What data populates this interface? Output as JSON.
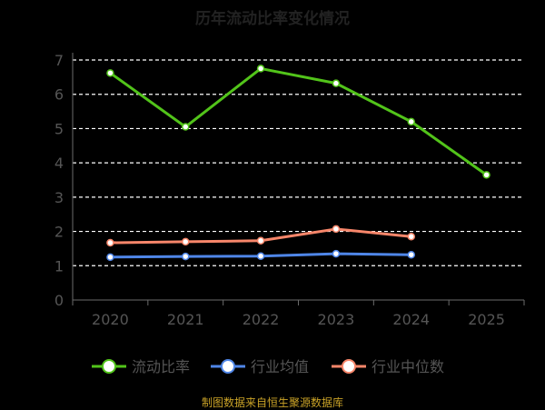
{
  "chart_data": {
    "type": "line",
    "title": "历年流动比率变化情况",
    "categories": [
      "2020",
      "2021",
      "2022",
      "2023",
      "2024",
      "2025"
    ],
    "ylim": [
      0,
      7
    ],
    "yticks": [
      "0",
      "1",
      "2",
      "3",
      "4",
      "5",
      "6",
      "7"
    ],
    "grid": true,
    "legend_position": "bottom",
    "series": [
      {
        "name": "流动比率",
        "color": "#52c41a",
        "values": [
          6.62,
          5.05,
          6.75,
          6.32,
          5.2,
          3.65
        ]
      },
      {
        "name": "行业均值",
        "color": "#4f86e8",
        "values": [
          1.25,
          1.27,
          1.28,
          1.35,
          1.32,
          null
        ]
      },
      {
        "name": "行业中位数",
        "color": "#f7866a",
        "values": [
          1.67,
          1.7,
          1.73,
          2.07,
          1.85,
          null
        ]
      }
    ]
  },
  "footer": "制图数据来自恒生聚源数据库"
}
